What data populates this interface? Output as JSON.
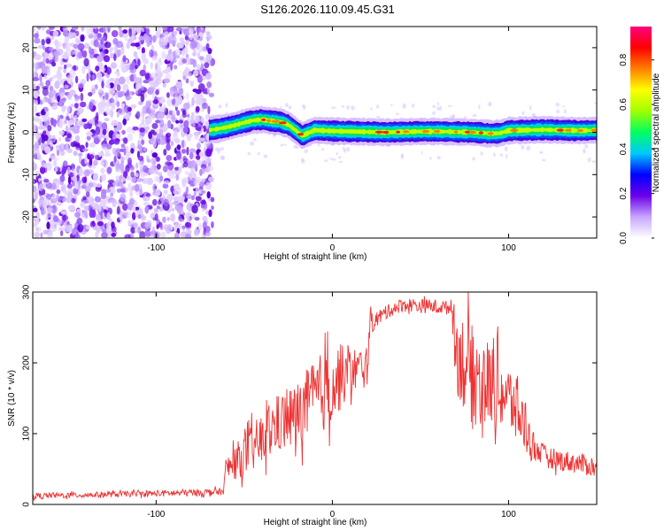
{
  "chart_data": [
    {
      "type": "heatmap",
      "title": "S126.2026.110.09.45.G31",
      "xlabel": "Height of straight line (km)",
      "ylabel": "Frequency (Hz)",
      "xlim": [
        -170,
        150
      ],
      "ylim": [
        -25,
        25
      ],
      "xticks": [
        -100,
        0,
        100
      ],
      "yticks": [
        -20,
        -10,
        0,
        10,
        20
      ],
      "colorbar": {
        "label": "Normalized spectral amplitude",
        "range": [
          0,
          0.95
        ],
        "ticks": [
          "0.0",
          "0.2",
          "0.4",
          "0.6",
          "0.8"
        ],
        "colors": [
          "#ffffff",
          "#c8a6ff",
          "#6a00e8",
          "#0000ff",
          "#00c8ff",
          "#00ff60",
          "#a0ff00",
          "#ffff00",
          "#ff8000",
          "#ff0000",
          "#ff0080"
        ]
      },
      "noise_region_x": [
        -170,
        -68
      ],
      "ridge": {
        "x": [
          -70,
          -65,
          -60,
          -55,
          -50,
          -45,
          -40,
          -35,
          -30,
          -25,
          -20,
          -17,
          -15,
          -10,
          -5,
          0,
          10,
          20,
          30,
          40,
          50,
          60,
          70,
          80,
          90,
          95,
          100,
          110,
          120,
          130,
          140,
          150
        ],
        "y": [
          0.5,
          0.8,
          1.2,
          1.7,
          2.3,
          2.8,
          3.0,
          2.7,
          2.5,
          1.8,
          0.2,
          -0.8,
          -0.4,
          0.5,
          0.4,
          0.3,
          0.2,
          0.1,
          0.0,
          0.1,
          0.2,
          0.2,
          0.1,
          0.0,
          -0.3,
          -0.2,
          0.4,
          0.5,
          0.6,
          0.5,
          0.4,
          0.5
        ]
      }
    },
    {
      "type": "line",
      "xlabel": "Height of straight line (km)",
      "ylabel": "SNR (10 * v/v)",
      "xlim": [
        -170,
        150
      ],
      "ylim": [
        0,
        300
      ],
      "xticks": [
        -100,
        0,
        100
      ],
      "yticks": [
        0,
        100,
        200,
        300
      ],
      "series": [
        {
          "name": "SNR",
          "color": "#ee3333",
          "x": [
            -170,
            -150,
            -130,
            -110,
            -90,
            -75,
            -62,
            -60,
            -55,
            -50,
            -45,
            -40,
            -35,
            -30,
            -25,
            -20,
            -15,
            -10,
            -5,
            0,
            5,
            10,
            15,
            20,
            21,
            22,
            25,
            30,
            35,
            40,
            45,
            50,
            55,
            60,
            65,
            68,
            70,
            75,
            80,
            85,
            90,
            95,
            100,
            105,
            110,
            112,
            115,
            120,
            125,
            130,
            135,
            140,
            145,
            150
          ],
          "y": [
            12,
            13,
            14,
            15,
            16,
            17,
            18,
            50,
            60,
            70,
            80,
            90,
            105,
            115,
            120,
            125,
            140,
            150,
            160,
            170,
            180,
            188,
            192,
            195,
            250,
            255,
            262,
            270,
            278,
            282,
            282,
            280,
            280,
            279,
            278,
            280,
            220,
            200,
            180,
            175,
            170,
            160,
            150,
            130,
            110,
            90,
            80,
            70,
            65,
            62,
            60,
            58,
            55,
            52
          ],
          "noise_amplitude": [
            4,
            4,
            4,
            4,
            5,
            5,
            5,
            20,
            25,
            30,
            35,
            38,
            40,
            42,
            45,
            48,
            50,
            55,
            58,
            60,
            45,
            35,
            30,
            30,
            20,
            15,
            12,
            10,
            10,
            10,
            10,
            10,
            10,
            10,
            10,
            10,
            60,
            70,
            70,
            65,
            60,
            55,
            50,
            45,
            40,
            30,
            20,
            15,
            15,
            15,
            15,
            15,
            15,
            15
          ]
        }
      ]
    }
  ]
}
